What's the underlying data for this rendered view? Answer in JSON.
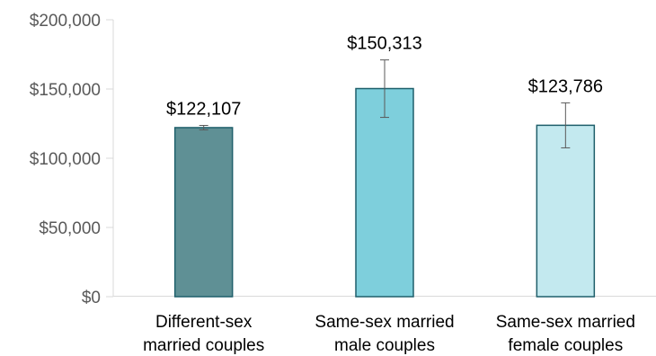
{
  "chart_data": {
    "type": "bar",
    "title": "",
    "xlabel": "",
    "ylabel": "",
    "ylim": [
      0,
      200000
    ],
    "yticks": [
      0,
      50000,
      100000,
      150000,
      200000
    ],
    "ytick_labels": [
      "$0",
      "$50,000",
      "$100,000",
      "$150,000",
      "$200,000"
    ],
    "grid": false,
    "categories": [
      [
        "Different-sex",
        "married couples"
      ],
      [
        "Same-sex married",
        "male couples"
      ],
      [
        "Same-sex married",
        "female couples"
      ]
    ],
    "values": [
      122107,
      150313,
      123786
    ],
    "value_labels": [
      "$122,107",
      "$150,313",
      "$123,786"
    ],
    "error_bars": [
      {
        "low": 120500,
        "high": 123700
      },
      {
        "low": 129500,
        "high": 171000
      },
      {
        "low": 107500,
        "high": 140000
      }
    ],
    "colors": [
      "#5f9095",
      "#7ecfdc",
      "#c3e9ef"
    ],
    "edge_color": "#1f5f6b"
  }
}
